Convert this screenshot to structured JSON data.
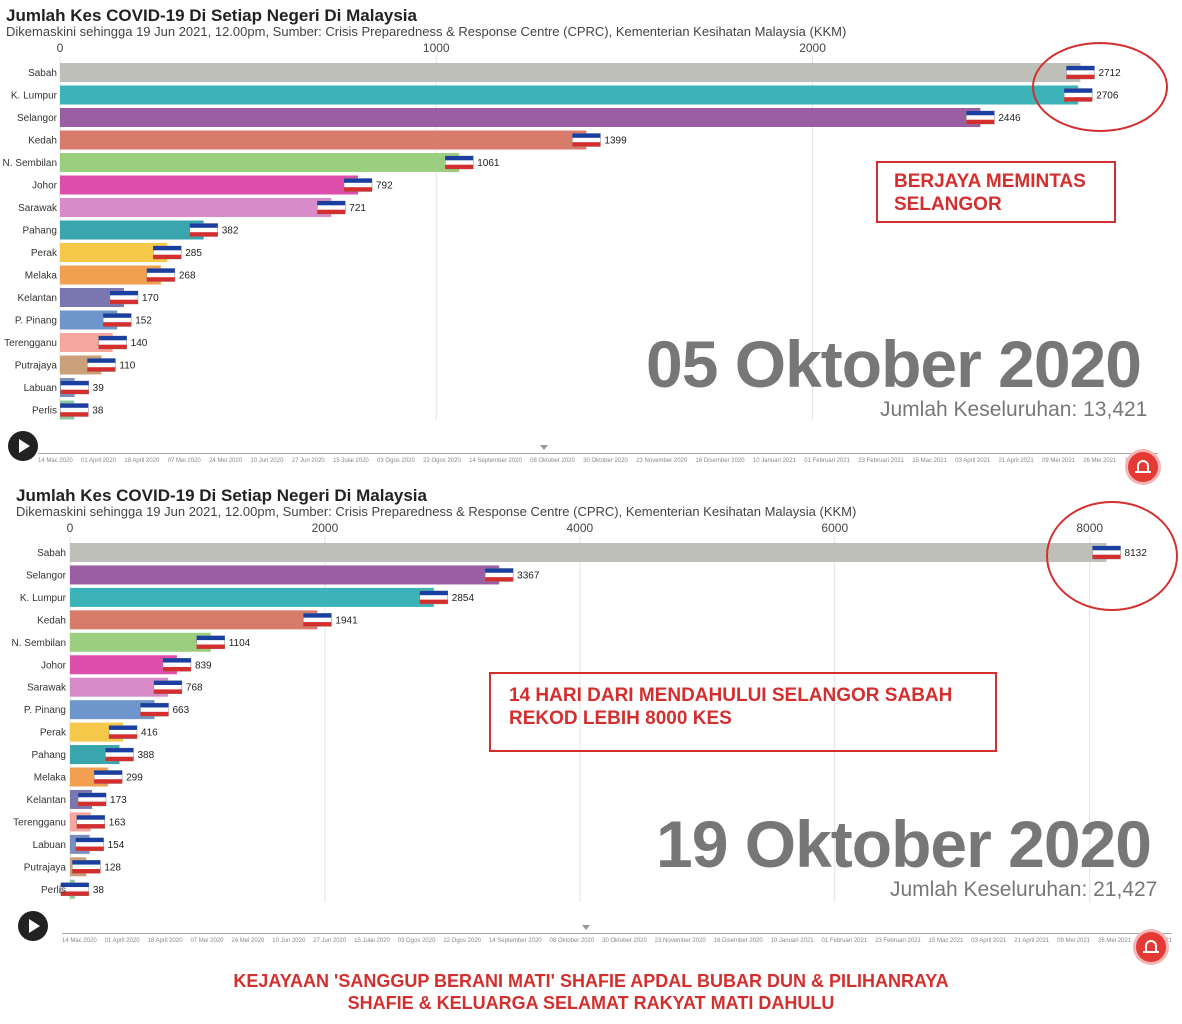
{
  "panels": [
    {
      "title": "Jumlah Kes COVID-19 Di Setiap Negeri Di Malaysia",
      "subtitle": "Dikemaskini sehingga 19 Jun 2021, 12.00pm, Sumber: Crisis Preparedness & Response Centre (CPRC), Kementerian Kesihatan Malaysia (KKM)",
      "date": "05 Oktober 2020",
      "total": "Jumlah Keseluruhan: 13,421",
      "callout": [
        "BERJAYA MEMINTAS",
        "SELANGOR"
      ]
    },
    {
      "title": "Jumlah Kes COVID-19 Di Setiap Negeri Di Malaysia",
      "subtitle": "Dikemaskini sehingga 19 Jun 2021, 12.00pm, Sumber: Crisis Preparedness & Response Centre (CPRC), Kementerian Kesihatan Malaysia (KKM)",
      "date": "19 Oktober 2020",
      "total": "Jumlah Keseluruhan: 21,427",
      "callout": [
        "14 HARI DARI MENDAHULUI SELANGOR SABAH",
        "REKOD LEBIH 8000 KES"
      ]
    }
  ],
  "timeline_labels": [
    "14 Mac 2020",
    "01 April 2020",
    "18 April 2020",
    "07 Mei 2020",
    "24 Mei 2020",
    "10 Jun 2020",
    "27 Jun 2020",
    "15 Julai 2020",
    "03 Ogos 2020",
    "22 Ogos 2020",
    "14 September 2020",
    "08 Oktober 2020",
    "30 Oktober 2020",
    "23 November 2020",
    "16 Disember 2020",
    "10 Januari 2021",
    "01 Februari 2021",
    "23 Februari 2021",
    "15 Mac 2021",
    "03 April 2021",
    "21 April 2021",
    "09 Mei 2021",
    "26 Mei 2021",
    "12 Jun 2021"
  ],
  "footer": [
    "KEJAYAAN 'SANGGUP BERANI MATI' SHAFIE APDAL BUBAR DUN & PILIHANRAYA",
    "SHAFIE & KELUARGA SELAMAT RAKYAT MATI DAHULU"
  ],
  "colors": {
    "Sabah": "#bdbfb8",
    "K. Lumpur": "#3bb3b9",
    "Selangor": "#9a5fa3",
    "Kedah": "#d97b6a",
    "N. Sembilan": "#9bce7f",
    "Johor": "#dd4fab",
    "Sarawak": "#d98ac9",
    "Pahang": "#39a6ad",
    "Perak": "#f5c84a",
    "Melaka": "#f0a04e",
    "Kelantan": "#7a76b0",
    "P. Pinang": "#6f95cd",
    "Terengganu": "#f7a69e",
    "Putrajaya": "#c9a07a",
    "Labuan": "#7a8fbf",
    "Perlis": "#8cc7a0",
    "annotation": "#d32f2f"
  },
  "chart_data": [
    {
      "type": "bar",
      "orientation": "horizontal",
      "title": "Jumlah Kes COVID-19 Di Setiap Negeri Di Malaysia",
      "date": "05 Oktober 2020",
      "categories": [
        "Sabah",
        "K. Lumpur",
        "Selangor",
        "Kedah",
        "N. Sembilan",
        "Johor",
        "Sarawak",
        "Pahang",
        "Perak",
        "Melaka",
        "Kelantan",
        "P. Pinang",
        "Terengganu",
        "Putrajaya",
        "Labuan",
        "Perlis"
      ],
      "values": [
        2712,
        2706,
        2446,
        1399,
        1061,
        792,
        721,
        382,
        285,
        268,
        170,
        152,
        140,
        110,
        39,
        38
      ],
      "xticks": [
        0,
        1000,
        2000
      ],
      "xlim": [
        0,
        2950
      ],
      "grid": true,
      "total": 13421
    },
    {
      "type": "bar",
      "orientation": "horizontal",
      "title": "Jumlah Kes COVID-19 Di Setiap Negeri Di Malaysia",
      "date": "19 Oktober 2020",
      "categories": [
        "Sabah",
        "Selangor",
        "K. Lumpur",
        "Kedah",
        "N. Sembilan",
        "Johor",
        "Sarawak",
        "P. Pinang",
        "Perak",
        "Pahang",
        "Melaka",
        "Kelantan",
        "Terengganu",
        "Labuan",
        "Putrajaya",
        "Perlis"
      ],
      "values": [
        8132,
        3367,
        2854,
        1941,
        1104,
        839,
        768,
        663,
        416,
        388,
        299,
        173,
        163,
        154,
        128,
        38
      ],
      "xticks": [
        0,
        2000,
        4000,
        6000,
        8000
      ],
      "xlim": [
        0,
        8630
      ],
      "grid": true,
      "total": 21427
    }
  ]
}
